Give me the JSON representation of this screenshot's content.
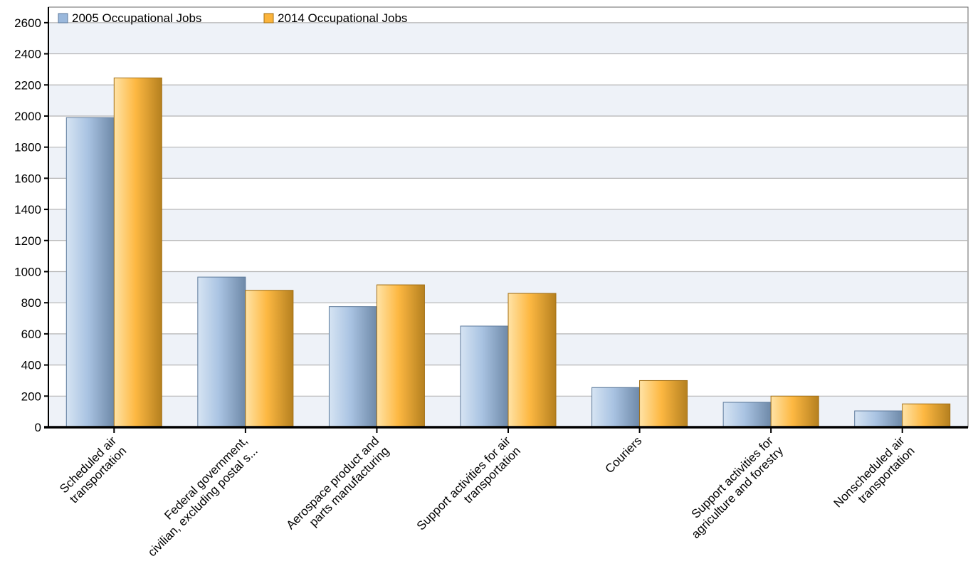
{
  "chart_data": {
    "type": "bar",
    "title": "",
    "xlabel": "",
    "ylabel": "",
    "ylim": [
      0,
      2700
    ],
    "yticks": [
      0,
      200,
      400,
      600,
      800,
      1000,
      1200,
      1400,
      1600,
      1800,
      2000,
      2200,
      2400,
      2600
    ],
    "grid": true,
    "legend_position": "top-left",
    "categories": [
      [
        "Scheduled air",
        "transportation"
      ],
      [
        "Federal government,",
        "civilian, excluding postal s..."
      ],
      [
        "Aerospace product and",
        "parts manufacturing"
      ],
      [
        "Support activities for air",
        "transportation"
      ],
      [
        "Couriers"
      ],
      [
        "Support activities for",
        "agriculture and forestry"
      ],
      [
        "Nonscheduled air",
        "transportation"
      ]
    ],
    "series": [
      {
        "name": "2005 Occupational Jobs",
        "color": "#9ab8dc",
        "values": [
          1990,
          965,
          775,
          650,
          255,
          160,
          105
        ]
      },
      {
        "name": "2014 Occupational Jobs",
        "color": "#fbb43c",
        "values": [
          2245,
          880,
          915,
          860,
          300,
          200,
          150
        ]
      }
    ]
  }
}
